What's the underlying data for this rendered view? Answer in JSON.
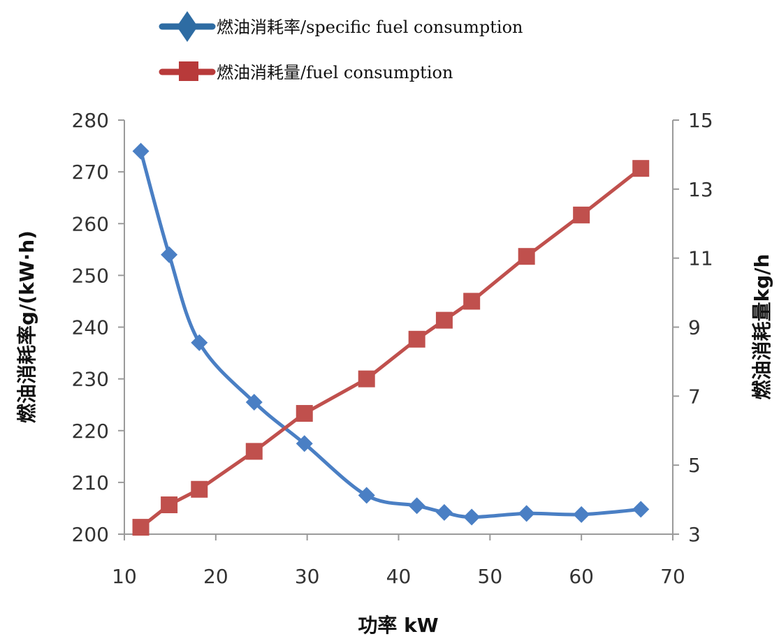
{
  "chart_data": {
    "type": "line",
    "xlabel": "功率  kW",
    "ylabel_left": "燃油消耗率g/(kW·h)",
    "ylabel_right": "燃油消耗量kg/h",
    "xlim": [
      10,
      70
    ],
    "ylim_left": [
      200,
      280
    ],
    "ylim_right": [
      3,
      15
    ],
    "x_ticks": [
      10,
      20,
      30,
      40,
      50,
      60,
      70
    ],
    "y_left_ticks": [
      200,
      210,
      220,
      230,
      240,
      250,
      260,
      270,
      280
    ],
    "y_right_ticks": [
      3,
      5,
      7,
      9,
      11,
      13,
      15
    ],
    "legend_position": "top",
    "grid": false,
    "series": [
      {
        "name": "燃油消耗率/specific fuel consumption",
        "axis": "left",
        "marker": "diamond",
        "color": "#4a7fc4",
        "legend_color": "#2e6ca3",
        "x": [
          11.8,
          14.9,
          18.2,
          24.2,
          29.7,
          36.5,
          42.0,
          45.0,
          48.0,
          54.0,
          60.0,
          66.5
        ],
        "values": [
          274,
          254,
          237,
          225.5,
          217.5,
          207.5,
          205.5,
          204.2,
          203.3,
          204,
          203.8,
          204.8
        ]
      },
      {
        "name": "燃油消耗量/fuel consumption",
        "axis": "right",
        "marker": "square",
        "color": "#c0504d",
        "legend_color": "#b83a3a",
        "x": [
          11.8,
          14.9,
          18.2,
          24.2,
          29.7,
          36.5,
          42.0,
          45.0,
          48.0,
          54.0,
          60.0,
          66.5
        ],
        "values": [
          3.2,
          3.85,
          4.3,
          5.4,
          6.5,
          7.5,
          8.65,
          9.2,
          9.75,
          11.05,
          12.25,
          13.6
        ]
      }
    ]
  }
}
